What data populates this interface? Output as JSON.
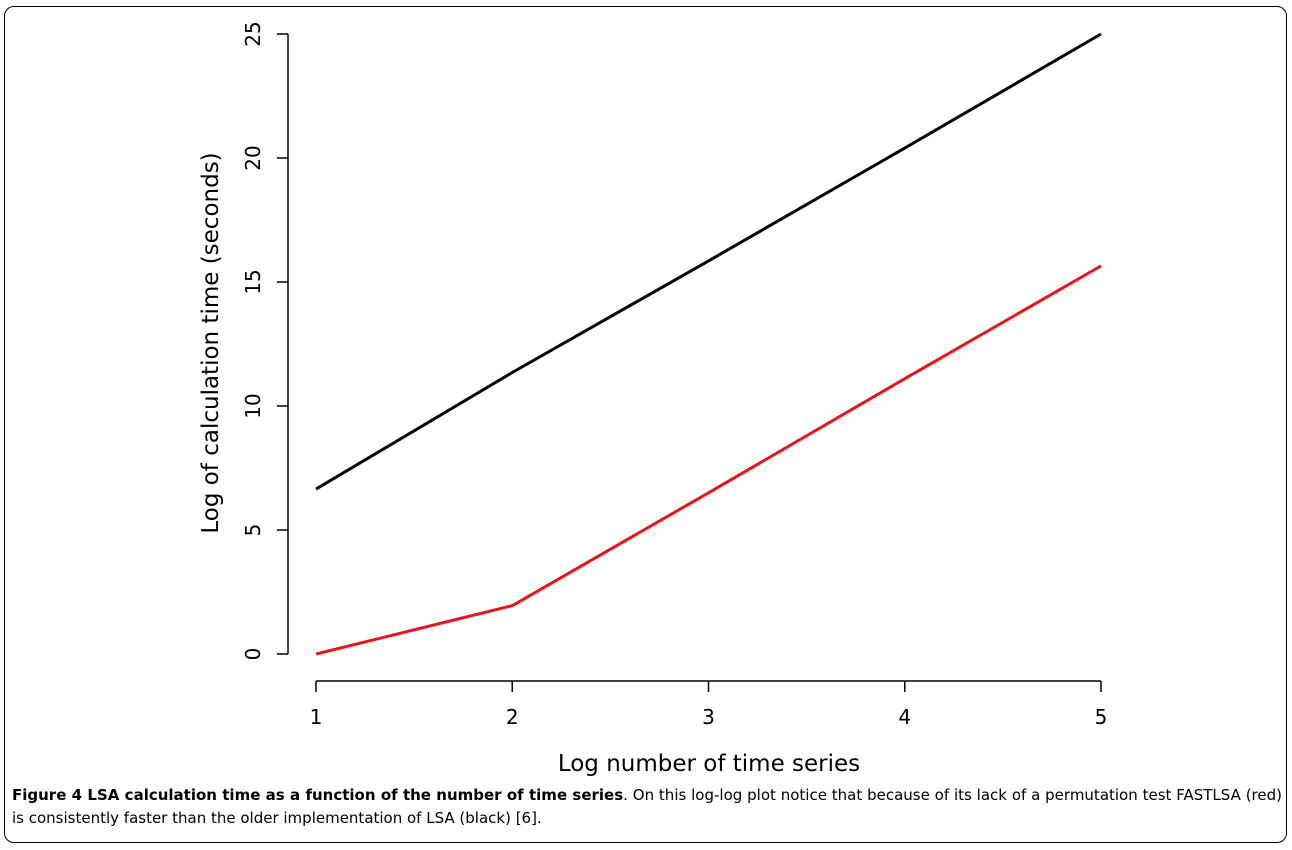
{
  "chart_data": {
    "type": "line",
    "title": "",
    "xlabel": "Log number of time series",
    "ylabel": "Log of calculation time (seconds)",
    "x": [
      1,
      2,
      3,
      4,
      5
    ],
    "xlim": [
      1,
      5
    ],
    "ylim": [
      0,
      25
    ],
    "xticks": [
      "1",
      "2",
      "3",
      "4",
      "5"
    ],
    "yticks": [
      "0",
      "5",
      "10",
      "15",
      "20",
      "25"
    ],
    "grid": false,
    "legend": "none",
    "series": [
      {
        "color": "#000000",
        "values": [
          6.65,
          11.35,
          15.85,
          20.4,
          25.0
        ]
      },
      {
        "color": "#e8141c",
        "values": [
          0.0,
          1.95,
          6.5,
          11.1,
          15.65
        ]
      }
    ]
  },
  "caption": {
    "label": "Figure 4 LSA calculation time as a function of the number of time series",
    "text": ". On this log-log plot notice that because of its lack of a permutation test FASTLSA (red) is consistently faster than the older implementation of LSA (black) [6]."
  }
}
